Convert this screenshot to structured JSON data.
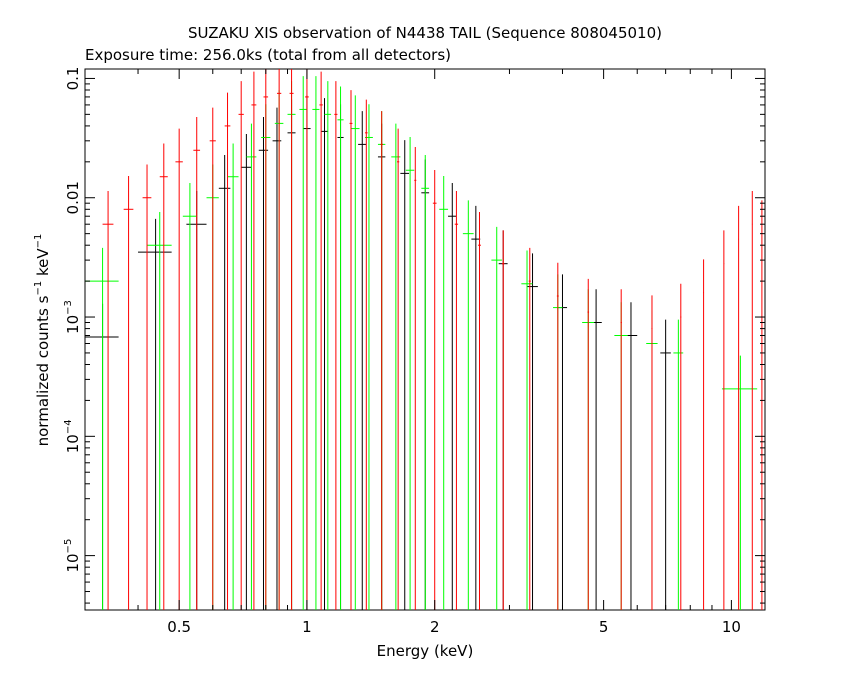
{
  "chart_data": {
    "type": "scatter",
    "title": "SUZAKU XIS observation of N4438 TAIL (Sequence 808045010)",
    "subtitle": "Exposure time: 256.0ks (total from all detectors)",
    "xlabel": "Energy (keV)",
    "ylabel_main": "normalized counts s",
    "ylabel_sup1": "−1",
    "ylabel_mid": " keV",
    "ylabel_sup2": "−1",
    "x_scale": "log",
    "y_scale": "log",
    "xlim": [
      0.3,
      12.0
    ],
    "ylim": [
      3.5e-06,
      0.12
    ],
    "grid": false,
    "x_ticks": [
      {
        "value": 0.5,
        "label": "0.5"
      },
      {
        "value": 1,
        "label": "1"
      },
      {
        "value": 2,
        "label": "2"
      },
      {
        "value": 5,
        "label": "5"
      },
      {
        "value": 10,
        "label": "10"
      }
    ],
    "y_ticks": [
      {
        "value": 0.1,
        "mantissa": "0.1",
        "exp": ""
      },
      {
        "value": 0.01,
        "mantissa": "0.01",
        "exp": ""
      },
      {
        "value": 0.001,
        "mantissa": "10",
        "exp": "−3"
      },
      {
        "value": 0.0001,
        "mantissa": "10",
        "exp": "−4"
      },
      {
        "value": 1e-05,
        "mantissa": "10",
        "exp": "−5"
      }
    ],
    "series": [
      {
        "color": "#000000",
        "points": [
          [
            0.33,
            0.00068,
            0.3,
            0.36
          ],
          [
            0.44,
            0.0035,
            0.4,
            0.48
          ],
          [
            0.55,
            0.006,
            0.52,
            0.58
          ],
          [
            0.64,
            0.012,
            0.62,
            0.66
          ],
          [
            0.72,
            0.018,
            0.7,
            0.74
          ],
          [
            0.79,
            0.025,
            0.77,
            0.81
          ],
          [
            0.85,
            0.03,
            0.83,
            0.87
          ],
          [
            0.92,
            0.035,
            0.9,
            0.94
          ],
          [
            1.0,
            0.038,
            0.98,
            1.02
          ],
          [
            1.1,
            0.036,
            1.08,
            1.12
          ],
          [
            1.2,
            0.032,
            1.18,
            1.22
          ],
          [
            1.35,
            0.028,
            1.32,
            1.38
          ],
          [
            1.5,
            0.022,
            1.47,
            1.53
          ],
          [
            1.7,
            0.016,
            1.66,
            1.74
          ],
          [
            1.9,
            0.011,
            1.86,
            1.94
          ],
          [
            2.2,
            0.007,
            2.15,
            2.25
          ],
          [
            2.5,
            0.0045,
            2.44,
            2.56
          ],
          [
            2.9,
            0.0028,
            2.83,
            2.97
          ],
          [
            3.4,
            0.0018,
            3.3,
            3.5
          ],
          [
            4.0,
            0.0012,
            3.9,
            4.1
          ],
          [
            4.8,
            0.0009,
            4.65,
            4.95
          ],
          [
            5.8,
            0.0007,
            5.6,
            6.0
          ],
          [
            7.0,
            0.0005,
            6.8,
            7.2
          ]
        ]
      },
      {
        "color": "#00ff00",
        "points": [
          [
            0.33,
            0.002,
            0.3,
            0.36
          ],
          [
            0.45,
            0.004,
            0.42,
            0.48
          ],
          [
            0.53,
            0.007,
            0.51,
            0.55
          ],
          [
            0.6,
            0.01,
            0.58,
            0.62
          ],
          [
            0.67,
            0.015,
            0.65,
            0.69
          ],
          [
            0.74,
            0.022,
            0.72,
            0.76
          ],
          [
            0.8,
            0.032,
            0.78,
            0.82
          ],
          [
            0.86,
            0.042,
            0.84,
            0.88
          ],
          [
            0.92,
            0.05,
            0.9,
            0.94
          ],
          [
            0.98,
            0.055,
            0.96,
            1.0
          ],
          [
            1.05,
            0.055,
            1.03,
            1.07
          ],
          [
            1.12,
            0.05,
            1.1,
            1.14
          ],
          [
            1.2,
            0.045,
            1.18,
            1.22
          ],
          [
            1.3,
            0.038,
            1.27,
            1.33
          ],
          [
            1.4,
            0.032,
            1.37,
            1.43
          ],
          [
            1.5,
            0.028,
            1.47,
            1.53
          ],
          [
            1.62,
            0.022,
            1.58,
            1.66
          ],
          [
            1.75,
            0.017,
            1.71,
            1.79
          ],
          [
            1.9,
            0.012,
            1.86,
            1.94
          ],
          [
            2.1,
            0.008,
            2.05,
            2.15
          ],
          [
            2.4,
            0.005,
            2.33,
            2.47
          ],
          [
            2.8,
            0.003,
            2.72,
            2.88
          ],
          [
            3.3,
            0.0019,
            3.2,
            3.4
          ],
          [
            3.9,
            0.0012,
            3.8,
            4.0
          ],
          [
            4.6,
            0.0009,
            4.45,
            4.75
          ],
          [
            5.5,
            0.0007,
            5.3,
            5.7
          ],
          [
            6.5,
            0.0006,
            6.3,
            6.7
          ],
          [
            7.5,
            0.0005,
            7.3,
            7.7
          ],
          [
            10.5,
            0.00025,
            9.5,
            11.5
          ]
        ]
      },
      {
        "color": "#ff0000",
        "points": [
          [
            0.34,
            0.006,
            0.33,
            0.35
          ],
          [
            0.38,
            0.008,
            0.37,
            0.39
          ],
          [
            0.42,
            0.01,
            0.41,
            0.43
          ],
          [
            0.46,
            0.015,
            0.45,
            0.47
          ],
          [
            0.5,
            0.02,
            0.49,
            0.51
          ],
          [
            0.55,
            0.025,
            0.54,
            0.56
          ],
          [
            0.6,
            0.03,
            0.59,
            0.61
          ],
          [
            0.65,
            0.04,
            0.64,
            0.66
          ],
          [
            0.7,
            0.05,
            0.69,
            0.71
          ],
          [
            0.75,
            0.06,
            0.74,
            0.76
          ],
          [
            0.8,
            0.07,
            0.79,
            0.81
          ],
          [
            0.86,
            0.075,
            0.85,
            0.87
          ],
          [
            0.92,
            0.075,
            0.91,
            0.93
          ],
          [
            1.0,
            0.07,
            0.99,
            1.01
          ],
          [
            1.08,
            0.06,
            1.07,
            1.09
          ],
          [
            1.17,
            0.05,
            1.16,
            1.18
          ],
          [
            1.27,
            0.042,
            1.26,
            1.28
          ],
          [
            1.38,
            0.035,
            1.37,
            1.39
          ],
          [
            1.5,
            0.028,
            1.49,
            1.51
          ],
          [
            1.64,
            0.02,
            1.63,
            1.65
          ],
          [
            1.8,
            0.014,
            1.79,
            1.81
          ],
          [
            2.0,
            0.009,
            1.98,
            2.02
          ],
          [
            2.25,
            0.006,
            2.23,
            2.27
          ],
          [
            2.55,
            0.004,
            2.53,
            2.57
          ],
          [
            2.9,
            0.0028,
            2.88,
            2.92
          ],
          [
            3.35,
            0.002,
            3.33,
            3.37
          ],
          [
            3.9,
            0.0015,
            3.88,
            3.92
          ],
          [
            4.6,
            0.0011,
            4.58,
            4.62
          ],
          [
            5.5,
            0.0009,
            5.48,
            5.52
          ],
          [
            6.5,
            0.0008,
            6.48,
            6.52
          ],
          [
            7.6,
            0.001,
            7.58,
            7.62
          ],
          [
            8.6,
            0.0016,
            8.58,
            8.62
          ],
          [
            9.6,
            0.0028,
            9.58,
            9.62
          ],
          [
            10.4,
            0.0045,
            10.38,
            10.42
          ],
          [
            11.2,
            0.006,
            11.18,
            11.22
          ],
          [
            11.8,
            0.005,
            11.78,
            11.82
          ]
        ]
      }
    ]
  }
}
